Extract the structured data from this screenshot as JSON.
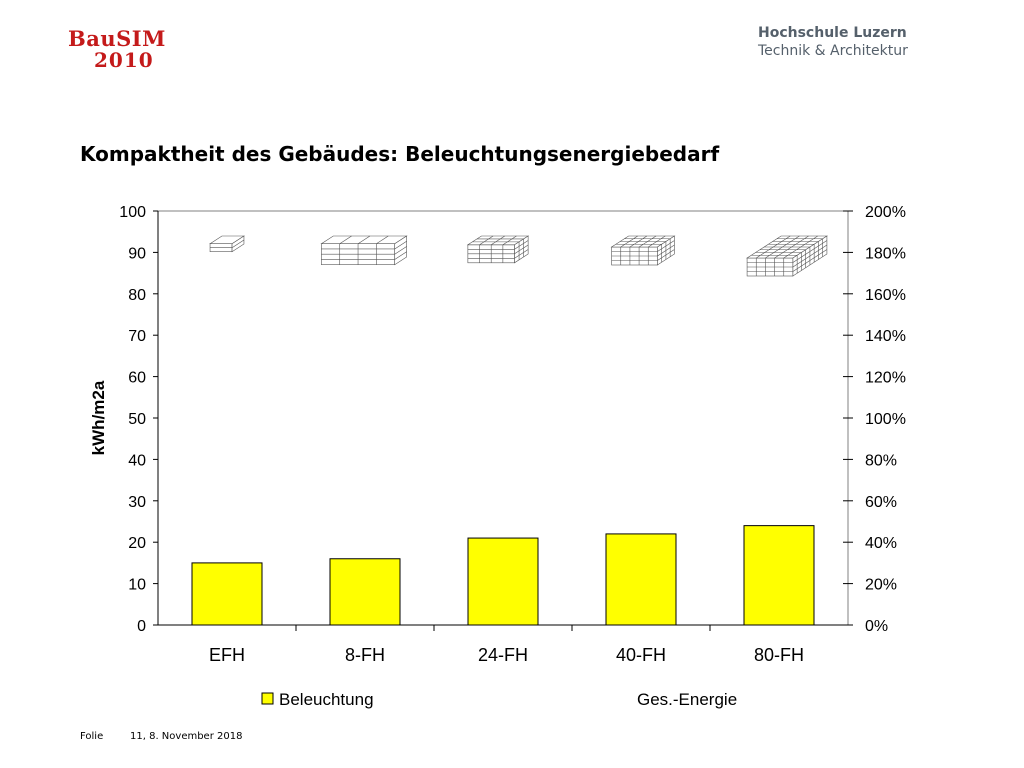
{
  "logo": {
    "left_line1": "BauSIM",
    "left_line2": "2010",
    "right_line1": "Hochschule Luzern",
    "right_line2": "Technik & Architektur"
  },
  "title": "Kompaktheit des Gebäudes: Beleuchtungsenergiebedarf",
  "colors": {
    "bar_fill": "#ffff00",
    "logo_red": "#c41a1a",
    "logo_gray": "#55606b"
  },
  "chart_data": {
    "type": "bar",
    "categories": [
      "EFH",
      "8-FH",
      "24-FH",
      "40-FH",
      "80-FH"
    ],
    "series": [
      {
        "name": "Beleuchtung",
        "values": [
          15,
          16,
          21,
          22,
          24
        ],
        "axis": "left",
        "color": "#ffff00"
      }
    ],
    "ylabel": "kWh/m2a",
    "ylim": [
      0,
      100
    ],
    "yticks": [
      "0",
      "10",
      "20",
      "30",
      "40",
      "50",
      "60",
      "70",
      "80",
      "90",
      "100"
    ],
    "y2lim": [
      0,
      200
    ],
    "y2ticks": [
      "0%",
      "20%",
      "40%",
      "60%",
      "80%",
      "100%",
      "120%",
      "140%",
      "160%",
      "180%",
      "200%"
    ],
    "legend": [
      {
        "label": "Beleuchtung",
        "swatch": true
      },
      {
        "label": "Ges.-Energie",
        "swatch": false
      }
    ],
    "legend_position": "bottom",
    "grid": false,
    "building_icons": [
      "EFH",
      "8-FH",
      "24-FH",
      "40-FH",
      "80-FH"
    ]
  },
  "footer": {
    "label": "Folie",
    "info": "11, 8. November 2018"
  }
}
